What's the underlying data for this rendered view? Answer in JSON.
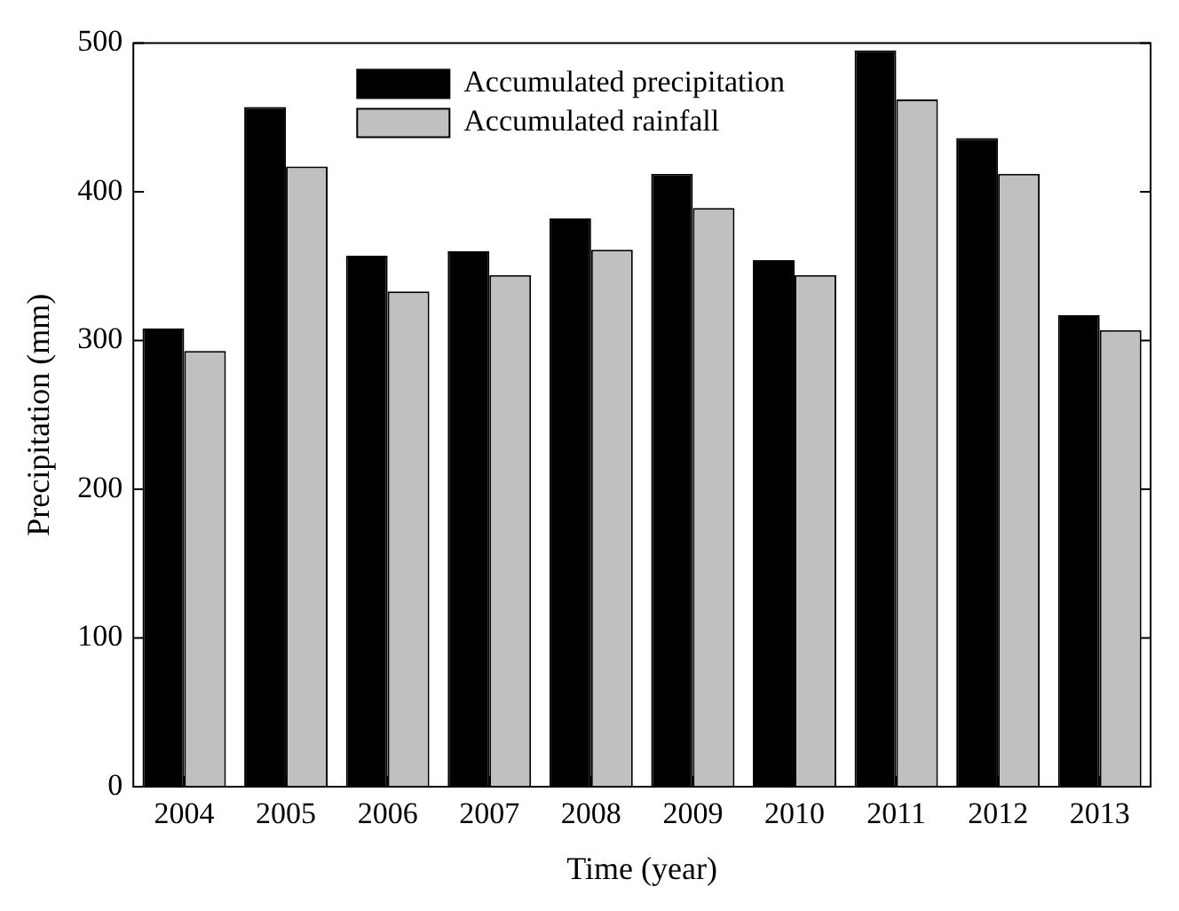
{
  "chart_data": {
    "type": "bar",
    "xlabel": "Time (year)",
    "ylabel": "Precipitation (mm)",
    "categories": [
      "2004",
      "2005",
      "2006",
      "2007",
      "2008",
      "2009",
      "2010",
      "2011",
      "2012",
      "2013"
    ],
    "series": [
      {
        "name": "Accumulated precipitation",
        "color": "#000000",
        "values": [
          308,
          457,
          357,
          360,
          382,
          412,
          354,
          495,
          436,
          317
        ]
      },
      {
        "name": "Accumulated rainfall",
        "color": "#c0c0c0",
        "values": [
          293,
          417,
          333,
          344,
          361,
          389,
          344,
          462,
          412,
          307
        ]
      }
    ],
    "ylim": [
      0,
      500
    ],
    "yticks": [
      0,
      100,
      200,
      300,
      400,
      500
    ],
    "grid": false,
    "legend": "top"
  }
}
